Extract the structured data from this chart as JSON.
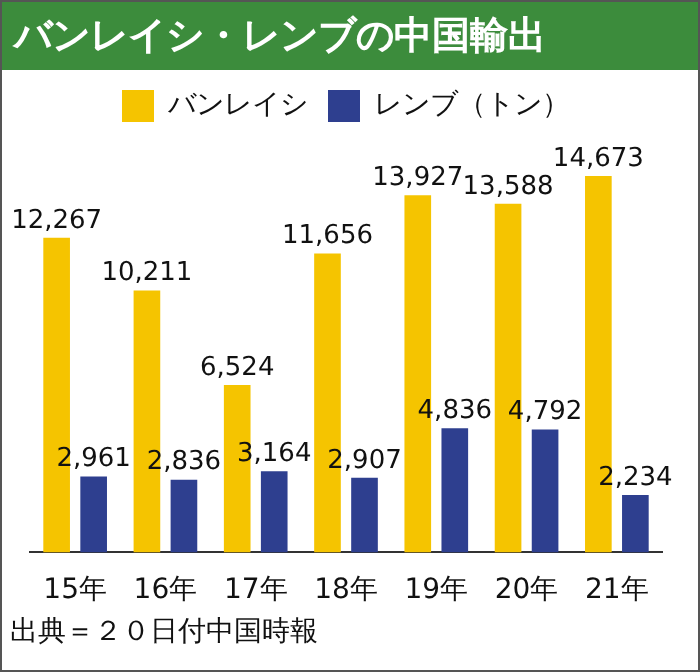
{
  "chart_data": {
    "type": "bar",
    "title": "バンレイシ・レンブの中国輸出",
    "categories": [
      "15年",
      "16年",
      "17年",
      "18年",
      "19年",
      "20年",
      "21年"
    ],
    "series": [
      {
        "name": "バンレイシ",
        "color": "#f5c400",
        "values": [
          12267,
          10211,
          6524,
          11656,
          13927,
          13588,
          14673
        ],
        "value_labels": [
          "12,267",
          "10,211",
          "6,524",
          "11,656",
          "13,927",
          "13,588",
          "14,673"
        ]
      },
      {
        "name": "レンブ（トン）",
        "color": "#2e3f8f",
        "values": [
          2961,
          2836,
          3164,
          2907,
          4836,
          4792,
          2234
        ],
        "value_labels": [
          "2,961",
          "2,836",
          "3,164",
          "2,907",
          "4,836",
          "4,792",
          "2,234"
        ]
      }
    ],
    "legend": "top",
    "annotations": [
      "出典＝２０日付中国時報"
    ]
  }
}
